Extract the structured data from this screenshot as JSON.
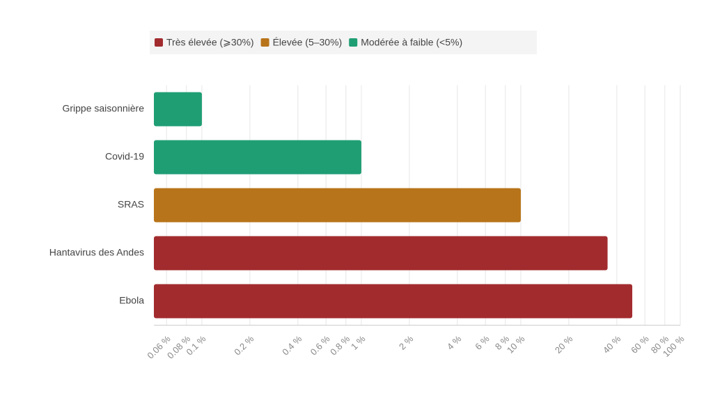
{
  "chart_data": {
    "type": "bar",
    "orientation": "horizontal",
    "x_scale": "log",
    "grid": true,
    "categories": [
      "Grippe saisonnière",
      "Covid-19",
      "SRAS",
      "Hantavirus des Andes",
      "Ebola"
    ],
    "series": [
      {
        "name": "Très élevée (⩾30%)",
        "color": "#a22b2e",
        "values": [
          null,
          null,
          null,
          35,
          50
        ]
      },
      {
        "name": "Élevée (5–30%)",
        "color": "#b8741a",
        "values": [
          null,
          null,
          10,
          null,
          null
        ]
      },
      {
        "name": "Modérée à faible (<5%)",
        "color": "#1f9e74",
        "values": [
          0.1,
          1,
          null,
          null,
          null
        ]
      }
    ],
    "xlim": [
      0.05,
      100
    ],
    "xticks": [
      {
        "value": 0.06,
        "label": "0.06 %"
      },
      {
        "value": 0.08,
        "label": "0.08 %"
      },
      {
        "value": 0.1,
        "label": "0.1 %"
      },
      {
        "value": 0.2,
        "label": "0.2 %"
      },
      {
        "value": 0.4,
        "label": "0.4 %"
      },
      {
        "value": 0.6,
        "label": "0.6 %"
      },
      {
        "value": 0.8,
        "label": "0.8 %"
      },
      {
        "value": 1,
        "label": "1 %"
      },
      {
        "value": 2,
        "label": "2 %"
      },
      {
        "value": 4,
        "label": "4 %"
      },
      {
        "value": 6,
        "label": "6 %"
      },
      {
        "value": 8,
        "label": "8 %"
      },
      {
        "value": 10,
        "label": "10 %"
      },
      {
        "value": 20,
        "label": "20 %"
      },
      {
        "value": 40,
        "label": "40 %"
      },
      {
        "value": 60,
        "label": "60 %"
      },
      {
        "value": 80,
        "label": "80 %"
      },
      {
        "value": 100,
        "label": "100 %"
      }
    ]
  }
}
